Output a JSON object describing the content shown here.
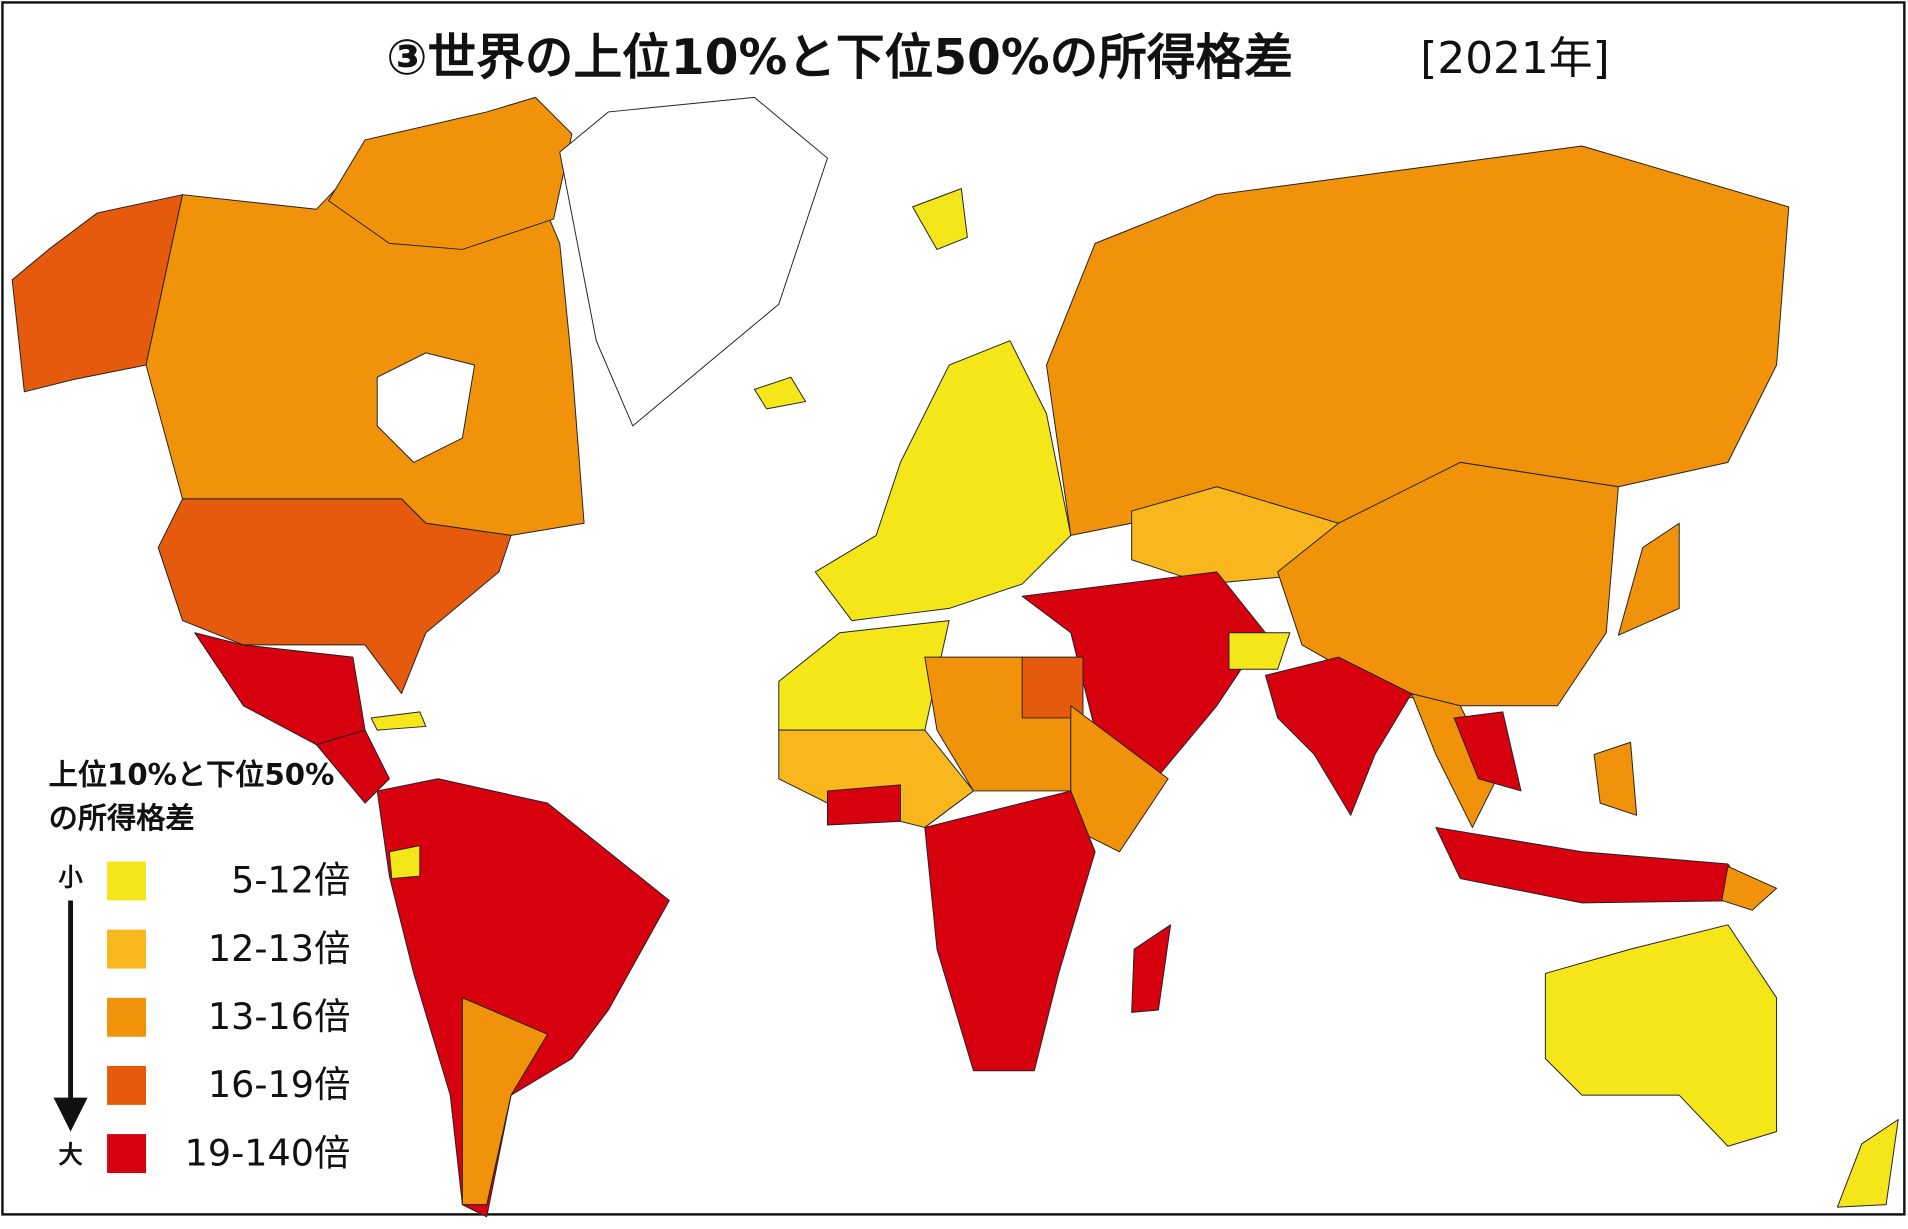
{
  "title": "③世界の上位10%と下位50%の所得格差",
  "subtitle": "[2021年]",
  "legend": {
    "title_lines": [
      "上位10%と下位50%",
      "の所得格差"
    ],
    "low_label": "小",
    "high_label": "大",
    "items": [
      {
        "label": "5-12倍",
        "color": "#f5e61a"
      },
      {
        "label": "12-13倍",
        "color": "#f8b81d"
      },
      {
        "label": "13-16倍",
        "color": "#f0930a"
      },
      {
        "label": "16-19倍",
        "color": "#e65a0e"
      },
      {
        "label": "19-140倍",
        "color": "#d7000f"
      }
    ]
  }
}
